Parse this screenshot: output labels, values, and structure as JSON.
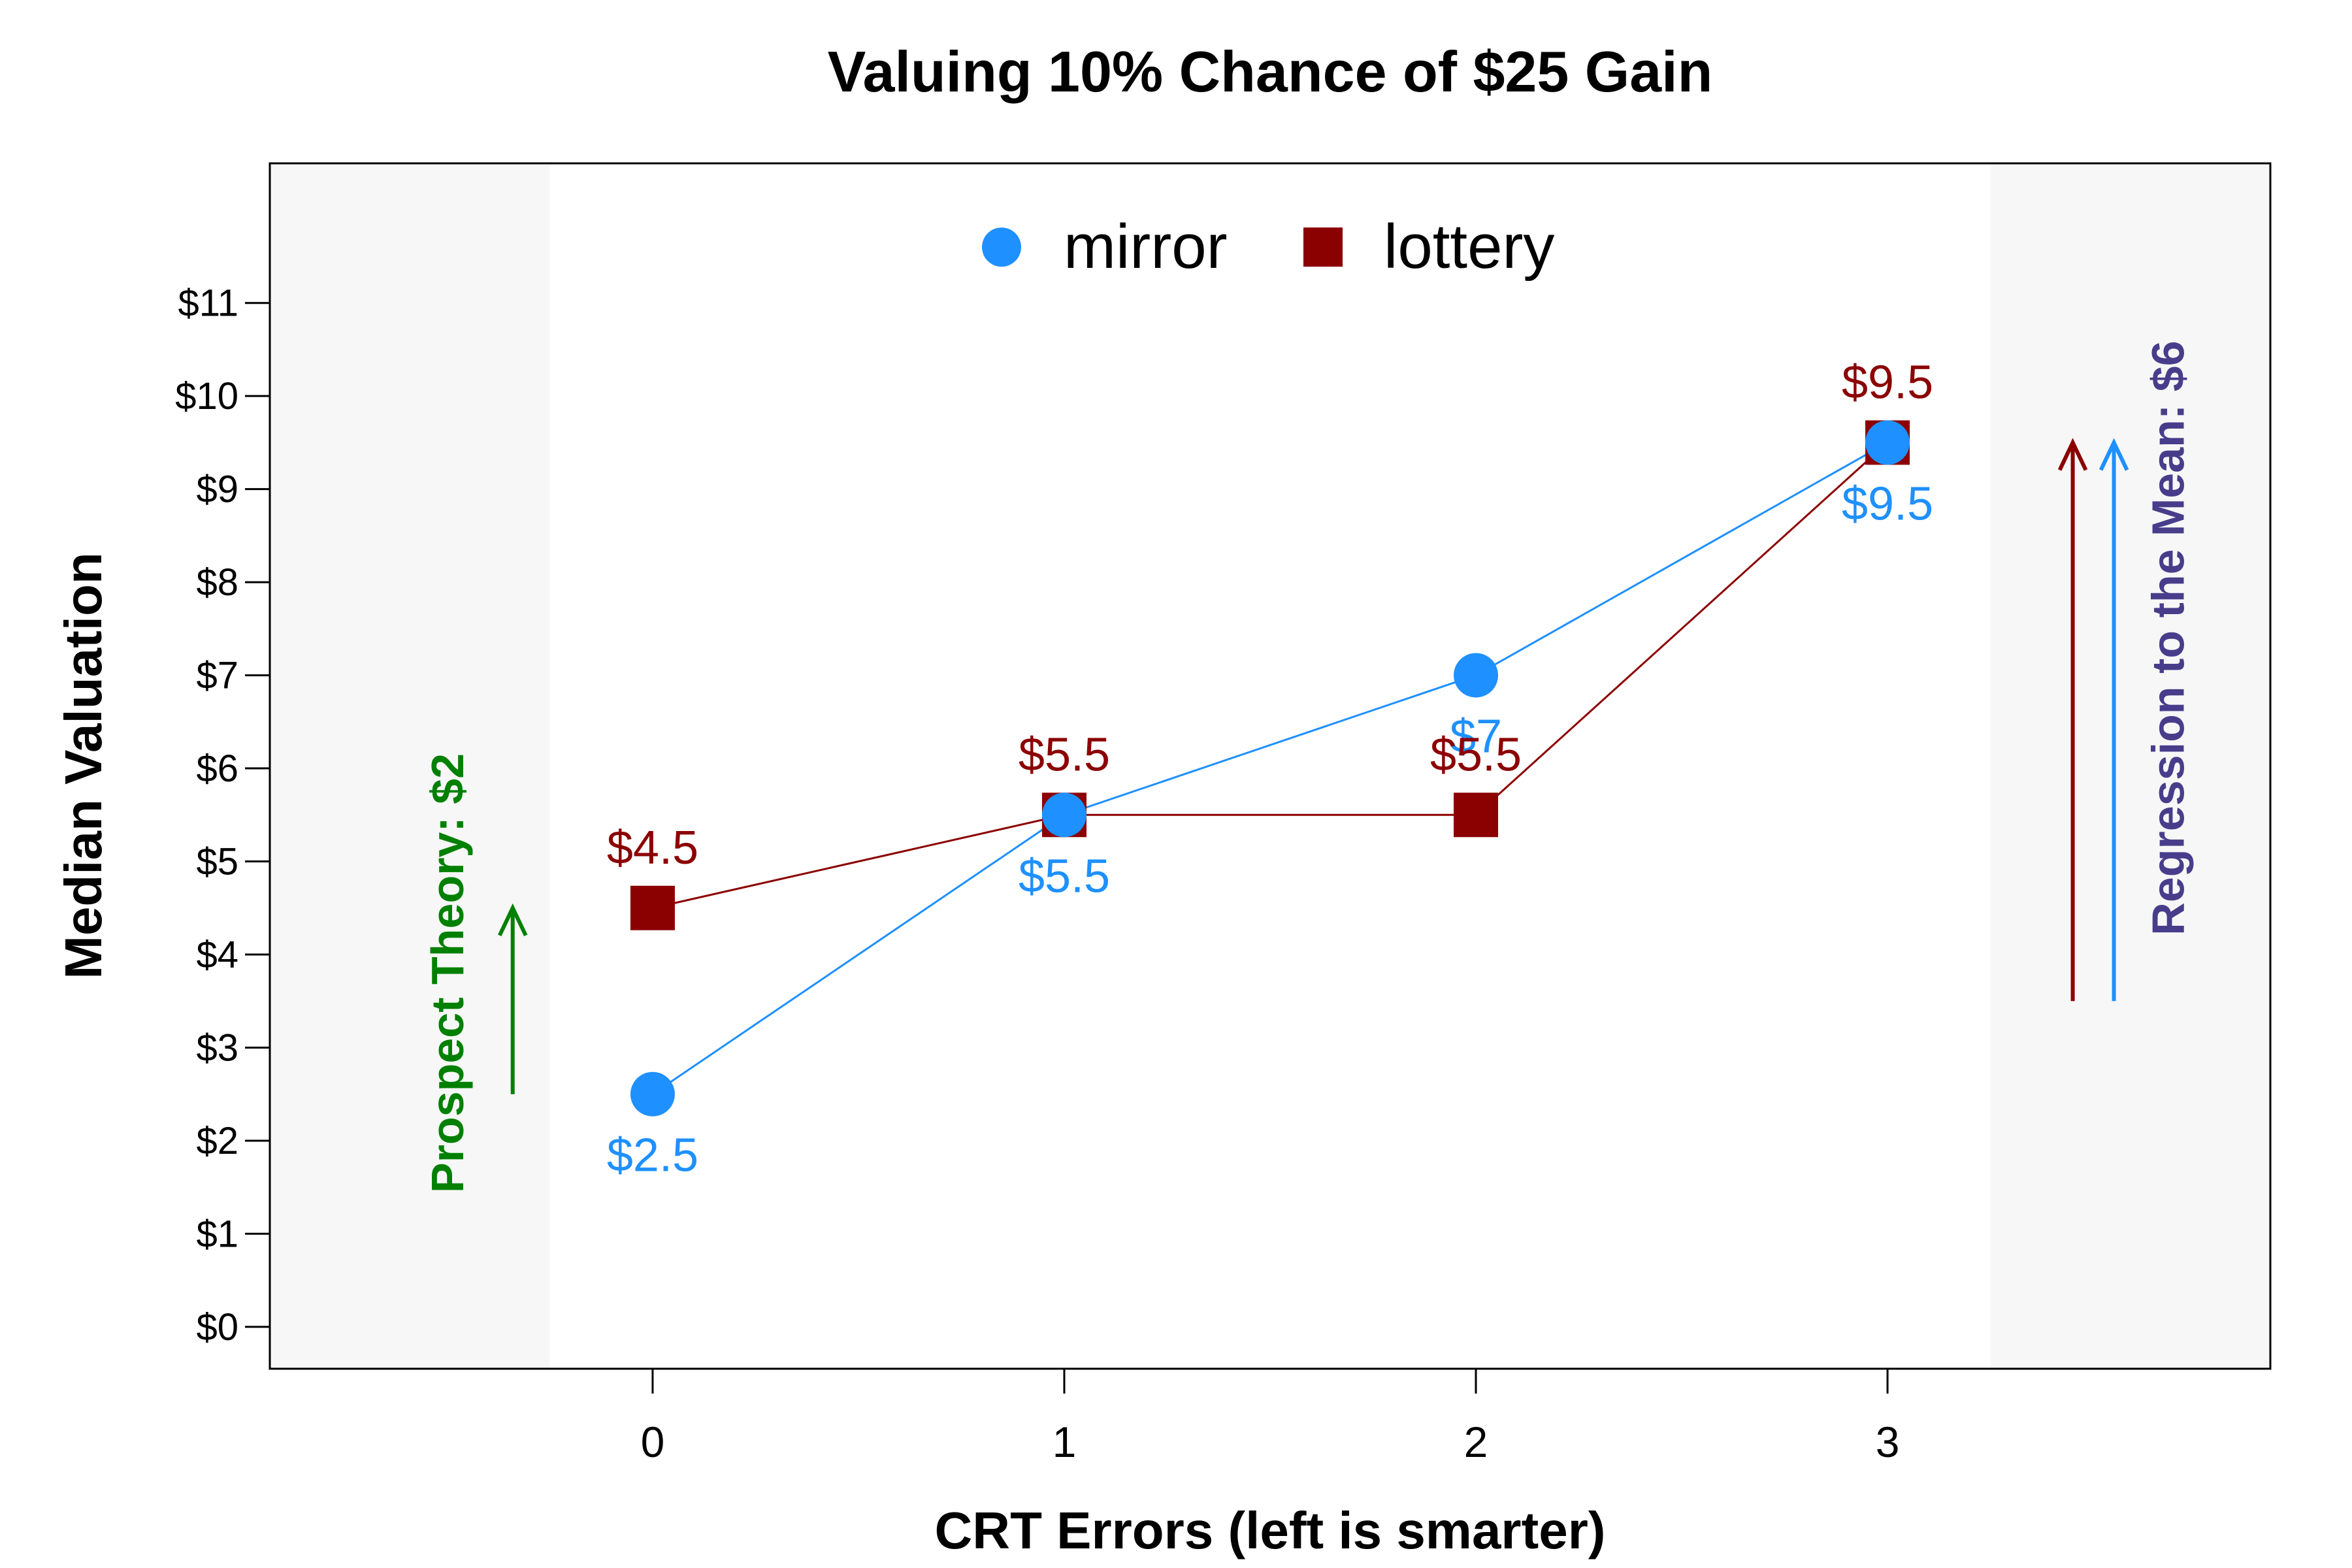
{
  "chart_data": {
    "type": "line",
    "title": "Valuing 10% Chance of $25 Gain",
    "xlabel": "CRT Errors (left is smarter)",
    "ylabel": "Median Valuation",
    "x": [
      0,
      1,
      2,
      3
    ],
    "x_tick_labels": [
      "0",
      "1",
      "2",
      "3"
    ],
    "xlim": [
      -0.93,
      3.93
    ],
    "ylim": [
      -0.45,
      12.5
    ],
    "y_ticks": [
      0,
      1,
      2,
      3,
      4,
      5,
      6,
      7,
      8,
      9,
      10,
      11
    ],
    "y_tick_labels": [
      "$0",
      "$1",
      "$2",
      "$3",
      "$4",
      "$5",
      "$6",
      "$7",
      "$8",
      "$9",
      "$10",
      "$11"
    ],
    "grid": false,
    "legend_position": "top-center",
    "shaded_regions": [
      {
        "x_start": -0.93,
        "x_end": -0.25,
        "color": "#f7f7f7"
      },
      {
        "x_start": 3.25,
        "x_end": 3.93,
        "color": "#f7f7f7"
      }
    ],
    "series": [
      {
        "name": "mirror",
        "color": "#1e90ff",
        "marker": "circle",
        "values": [
          2.5,
          5.5,
          7,
          9.5
        ],
        "labels": [
          "$2.5",
          "$5.5",
          "$7",
          "$9.5"
        ],
        "label_position": "below"
      },
      {
        "name": "lottery",
        "color": "#8b0000",
        "marker": "square",
        "values": [
          4.5,
          5.5,
          5.5,
          9.5
        ],
        "labels": [
          "$4.5",
          "$5.5",
          "$5.5",
          "$9.5"
        ],
        "label_position": "above"
      }
    ],
    "annotations": {
      "prospect_theory": {
        "text": "Prospect Theory: $2",
        "color": "#008000",
        "arrow": {
          "x": -0.34,
          "y_from": 2.5,
          "y_to": 4.5
        }
      },
      "regression": {
        "text": "Regression to the Mean: $6",
        "color": "#483d8b",
        "arrows": [
          {
            "x": 3.45,
            "y_from": 3.5,
            "y_to": 9.5,
            "color": "#8b0000"
          },
          {
            "x": 3.55,
            "y_from": 3.5,
            "y_to": 9.5,
            "color": "#1e90ff"
          }
        ]
      }
    }
  }
}
